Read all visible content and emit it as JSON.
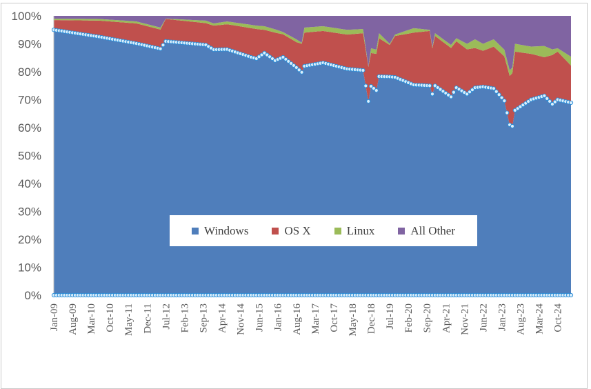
{
  "chart_data": {
    "type": "area",
    "stacked": "percent",
    "title": "",
    "xlabel": "",
    "ylabel": "",
    "ylim": [
      0,
      100
    ],
    "start_month": "2009-01",
    "end_month": "2025-03",
    "y_ticks": [
      "0%",
      "10%",
      "20%",
      "30%",
      "40%",
      "50%",
      "60%",
      "70%",
      "80%",
      "90%",
      "100%"
    ],
    "x_ticks": [
      "Jan-09",
      "Aug-09",
      "Mar-10",
      "Oct-10",
      "May-11",
      "Dec-11",
      "Jul-12",
      "Feb-13",
      "Sep-13",
      "Apr-14",
      "Nov-14",
      "Jun-15",
      "Jan-16",
      "Aug-16",
      "Mar-17",
      "Oct-17",
      "May-18",
      "Dec-18",
      "Jul-19",
      "Feb-20",
      "Sep-20",
      "Apr-21",
      "Nov-21",
      "Jun-22",
      "Jan-23",
      "Aug-23",
      "Mar-24",
      "Oct-24"
    ],
    "legend_position": "center-bottom inside",
    "x": [
      "2009-01",
      "2010-06",
      "2011-08",
      "2012-05",
      "2012-07",
      "2013-10",
      "2014-01",
      "2014-06",
      "2015-03",
      "2015-05",
      "2015-08",
      "2015-12",
      "2016-03",
      "2016-08",
      "2016-10",
      "2016-11",
      "2017-06",
      "2018-03",
      "2018-09",
      "2018-11",
      "2018-12",
      "2019-02",
      "2019-03",
      "2019-07",
      "2019-09",
      "2020-04",
      "2020-10",
      "2020-11",
      "2020-12",
      "2021-06",
      "2021-08",
      "2021-12",
      "2022-03",
      "2022-06",
      "2022-10",
      "2023-02",
      "2023-04",
      "2023-05",
      "2023-06",
      "2023-12",
      "2024-05",
      "2024-08",
      "2024-10",
      "2025-03"
    ],
    "series": [
      {
        "name": "Windows",
        "color": "#4F7EBB",
        "values": [
          95,
          92.5,
          90.1,
          88.2,
          90.9,
          89.6,
          87.9,
          88,
          85.2,
          84.7,
          86.7,
          84,
          85.2,
          81.5,
          79.8,
          82,
          83.2,
          81,
          80.5,
          69.4,
          74.8,
          73.3,
          78.3,
          78.2,
          78,
          75.3,
          75,
          72,
          75,
          71,
          74.3,
          72,
          74.3,
          74.6,
          74,
          69.6,
          61,
          60.5,
          66.2,
          70,
          71.4,
          68.4,
          70,
          68.9
        ]
      },
      {
        "name": "OS X",
        "color": "#C0504D",
        "values": [
          3.5,
          5.8,
          7.2,
          6.9,
          8,
          7.8,
          8.6,
          9,
          10.4,
          10.6,
          8.3,
          10,
          8.2,
          9.1,
          10.2,
          12,
          11.4,
          12.3,
          13.3,
          12.3,
          11.9,
          13.1,
          13.7,
          11.4,
          14.8,
          18.7,
          19.6,
          16.4,
          17.8,
          17.5,
          16.6,
          16,
          14.2,
          12.9,
          15,
          15.9,
          17.5,
          19,
          21,
          16.4,
          13.8,
          17.6,
          17.2,
          13.3
        ]
      },
      {
        "name": "Linux",
        "color": "#9BBB59",
        "values": [
          0.5,
          0.6,
          0.7,
          0.7,
          0.1,
          0.9,
          0.8,
          1,
          1.2,
          1.2,
          1.3,
          1.2,
          0.8,
          1,
          0.4,
          1.8,
          1.7,
          1.7,
          1.5,
          0.2,
          1.7,
          1.5,
          1.8,
          0.4,
          0.5,
          1.6,
          0.4,
          0.5,
          1,
          1.1,
          1.1,
          2,
          3.1,
          2.5,
          2.6,
          2.4,
          2,
          2,
          2.8,
          2.6,
          4,
          2,
          1.2,
          3.2
        ]
      },
      {
        "name": "All Other",
        "color": "#8064A2",
        "values": [
          1,
          1.1,
          2,
          4.2,
          1,
          1.7,
          2.7,
          2,
          3.2,
          3.5,
          3.7,
          4.8,
          5.8,
          8.4,
          9.6,
          4.2,
          3.7,
          5,
          4.7,
          18.1,
          11.6,
          12.1,
          6.2,
          10,
          6.7,
          4.4,
          5,
          11.1,
          6.2,
          10.4,
          8,
          10,
          8.4,
          10,
          8.4,
          12.1,
          19.5,
          18.5,
          10,
          11,
          10.8,
          12,
          11.6,
          14.6
        ]
      }
    ],
    "marker_series_color": "#2E8FD8"
  },
  "legend": {
    "items": [
      {
        "label": "Windows",
        "color": "#4F7EBB"
      },
      {
        "label": "OS X",
        "color": "#C0504D"
      },
      {
        "label": "Linux",
        "color": "#9BBB59"
      },
      {
        "label": "All Other",
        "color": "#8064A2"
      }
    ]
  }
}
